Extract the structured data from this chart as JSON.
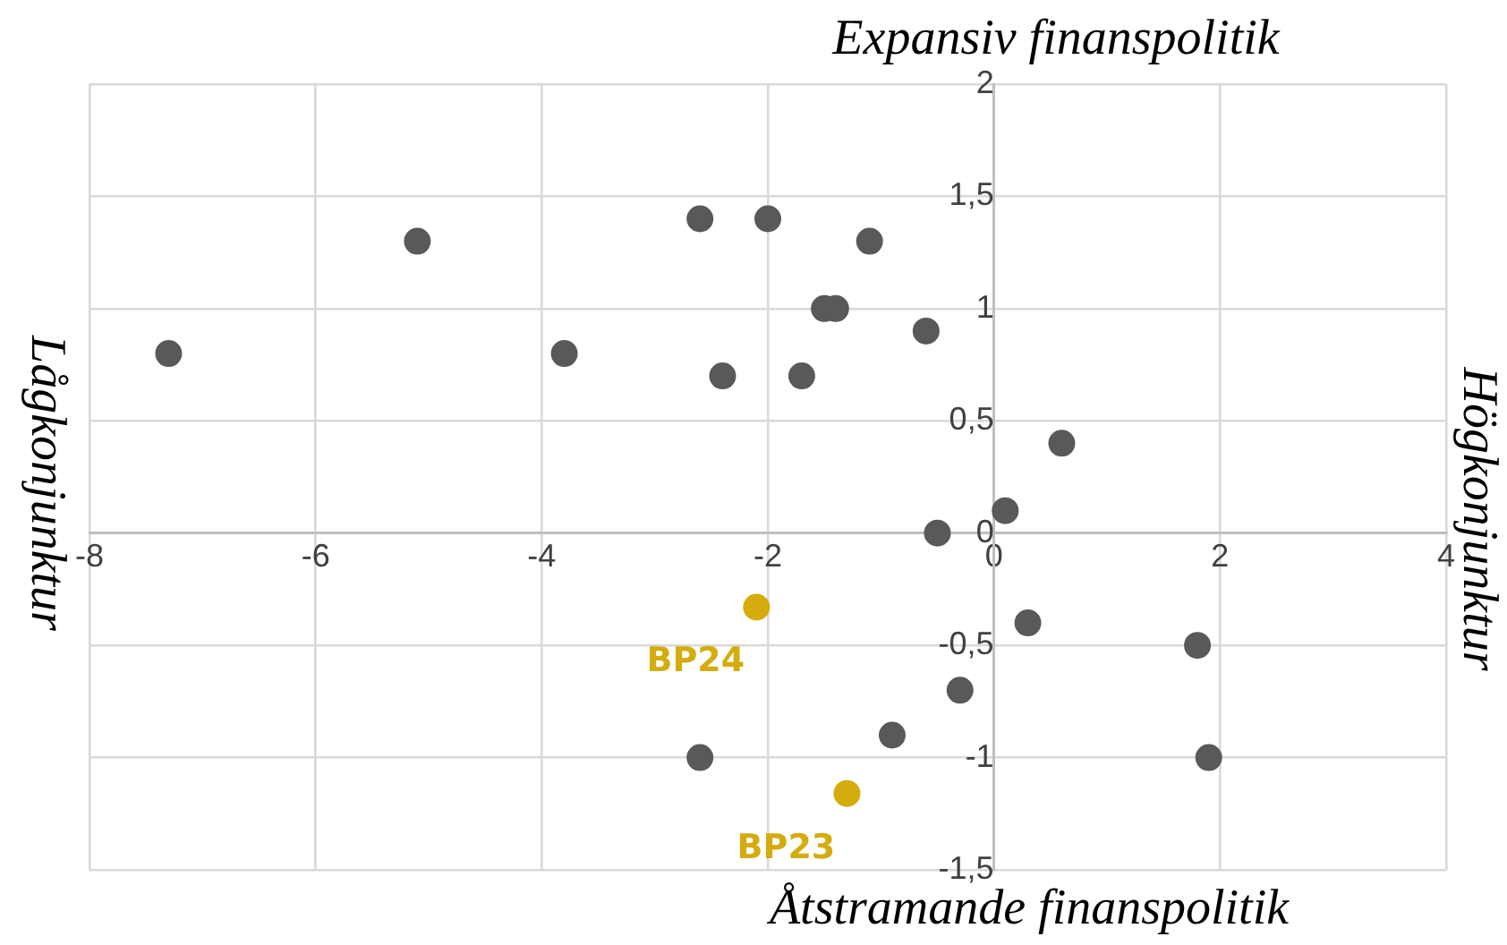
{
  "chart_data": {
    "type": "scatter",
    "title": "Expansiv finanspolitik",
    "xlabel": "Åtstramande finanspolitik",
    "ylabel": "Lågkonjunktur",
    "y2label": "Högkonjunktur",
    "series": [
      {
        "color": "#595959",
        "x": [
          -7.3,
          -5.1,
          -3.8,
          -2.6,
          -2.0,
          -1.1,
          -2.4,
          -1.7,
          -1.5,
          -1.4,
          -0.6,
          0.6,
          0.1,
          -0.5,
          0.3,
          1.8,
          -0.3,
          -0.9,
          -2.6,
          1.9
        ],
        "values": [
          0.8,
          1.3,
          0.8,
          1.4,
          1.4,
          1.3,
          0.7,
          0.7,
          1.0,
          1.0,
          0.9,
          0.4,
          0.1,
          0,
          -0.4,
          -0.5,
          -0.7,
          -0.9,
          -1.0,
          -1.0
        ]
      },
      {
        "color": "#d4ac0d",
        "x": [
          -2.1,
          -1.3
        ],
        "values": [
          -0.33,
          -1.16
        ]
      }
    ],
    "annotations": [
      {
        "text": "BP24",
        "x": -2.1,
        "y": -0.33
      },
      {
        "text": "BP23",
        "x": -1.3,
        "y": -1.16
      }
    ],
    "xlim": [
      -8,
      4
    ],
    "xticks": [
      -8,
      -6,
      -4,
      -2,
      0,
      2,
      4
    ],
    "ylim": [
      -1.5,
      2
    ],
    "yticks": [
      {
        "value": -1.5,
        "label": "-1,5"
      },
      -1,
      {
        "value": -0.5,
        "label": "-0,5"
      },
      0,
      {
        "value": 0.5,
        "label": "0,5"
      },
      1,
      {
        "value": 1.5,
        "label": "1,5"
      },
      2
    ],
    "grid": true,
    "legend": false,
    "marker": "circle"
  }
}
